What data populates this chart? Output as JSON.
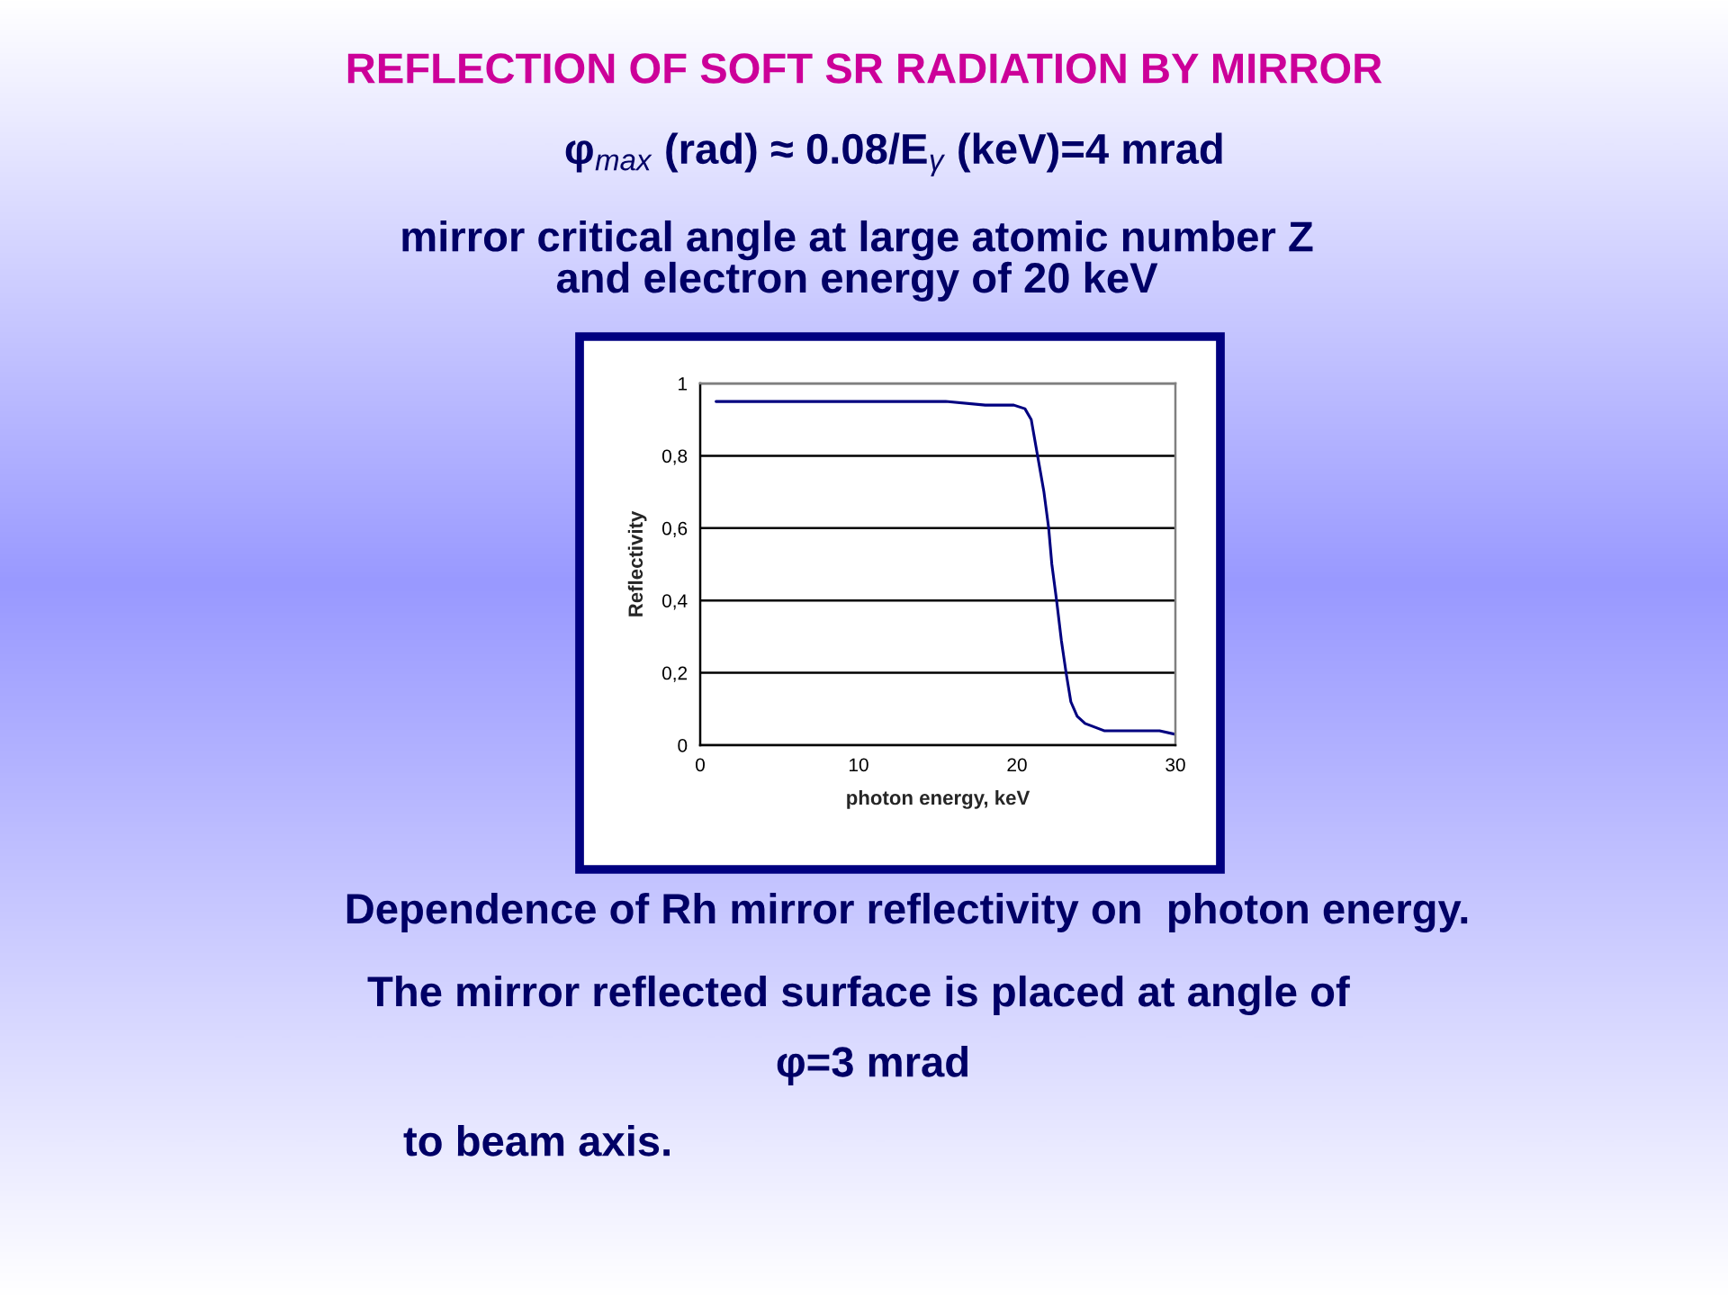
{
  "chart_data": {
    "type": "line",
    "title": "REFLECTION OF SOFT SR RADIATION BY MIRROR",
    "subtitle": "φ$_{max}$ (rad) ≈ 0.08/E$_{γ}$ (keV)=4 mrad",
    "xlabel": "photon energy, keV",
    "ylabel": "Reflectivity",
    "annotations": [
      "mirror critical angle at large atomic number Z\nand electron energy of 20 keV",
      "Dependence of Rh mirror reflectivity on  photon energy.",
      "The mirror reflected surface is placed at angle of",
      "φ=3 mrad",
      "to beam axis."
    ],
    "x": [
      1,
      5,
      10,
      13,
      15.5,
      18,
      19.8,
      20.5,
      20.9,
      21.3,
      21.7,
      22.0,
      22.2,
      22.5,
      22.8,
      23.1,
      23.4,
      23.8,
      24.3,
      25.5,
      27,
      29,
      30
    ],
    "series": [
      {
        "color": "#000080",
        "values": [
          0.95,
          0.95,
          0.95,
          0.95,
          0.95,
          0.94,
          0.94,
          0.93,
          0.9,
          0.8,
          0.7,
          0.6,
          0.5,
          0.4,
          0.29,
          0.2,
          0.12,
          0.08,
          0.06,
          0.04,
          0.04,
          0.04,
          0.03
        ]
      }
    ],
    "xlim": [
      0,
      30
    ],
    "ylim": [
      0,
      1
    ],
    "xticks": [
      0,
      10,
      20,
      30
    ],
    "yticks": [
      0,
      {
        "value": 0.2,
        "label": "0,2"
      },
      {
        "value": 0.4,
        "label": "0,4"
      },
      {
        "value": 0.6,
        "label": "0,6"
      },
      {
        "value": 0.8,
        "label": "0,8"
      },
      1
    ],
    "grid": "y",
    "line_style": "solid"
  }
}
